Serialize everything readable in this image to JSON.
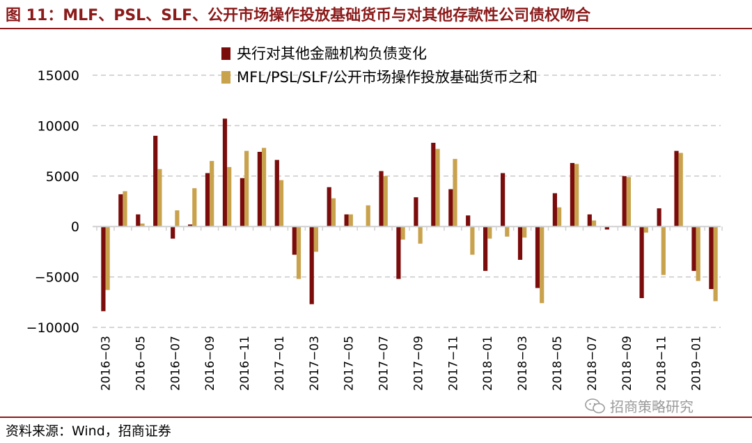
{
  "figure": {
    "title": "图 11：MLF、PSL、SLF、公开市场操作投放基础货币与对其他存款性公司债权吻合",
    "source": "资料来源：Wind，招商证券",
    "watermark": "招商策略研究"
  },
  "colors": {
    "series1": "#7B0C0C",
    "series2": "#C9A24D",
    "title": "#8B1A1A"
  },
  "chart_data": {
    "type": "bar",
    "title": "",
    "xlabel": "",
    "ylabel": "",
    "ylim": [
      -10000,
      15000
    ],
    "yticks": [
      15000,
      10000,
      5000,
      0,
      -5000,
      -10000
    ],
    "legend_position": "top",
    "grid": true,
    "categories": [
      "2016-03",
      "2016-04",
      "2016-05",
      "2016-06",
      "2016-07",
      "2016-08",
      "2016-09",
      "2016-10",
      "2016-11",
      "2016-12",
      "2017-01",
      "2017-02",
      "2017-03",
      "2017-04",
      "2017-05",
      "2017-06",
      "2017-07",
      "2017-08",
      "2017-09",
      "2017-10",
      "2017-11",
      "2017-12",
      "2018-01",
      "2018-02",
      "2018-03",
      "2018-04",
      "2018-05",
      "2018-06",
      "2018-07",
      "2018-08",
      "2018-09",
      "2018-10",
      "2018-11",
      "2018-12",
      "2019-01",
      "2019-02"
    ],
    "tick_labels": [
      "2016-03",
      "2016-05",
      "2016-07",
      "2016-09",
      "2016-11",
      "2017-01",
      "2017-03",
      "2017-05",
      "2017-07",
      "2017-09",
      "2017-11",
      "2018-01",
      "2018-03",
      "2018-05",
      "2018-07",
      "2018-09",
      "2018-11",
      "2019-01"
    ],
    "series": [
      {
        "name": "央行对其他金融机构负债变化",
        "values": [
          -8400,
          3200,
          1200,
          9000,
          -1200,
          200,
          5300,
          10700,
          4800,
          7400,
          6600,
          -2800,
          -7700,
          3900,
          1200,
          0,
          5500,
          -5200,
          2900,
          8300,
          3700,
          1100,
          -4400,
          5300,
          -3300,
          -6100,
          3300,
          6300,
          1200,
          -300,
          5000,
          -7100,
          1800,
          7500,
          -4400,
          -6200
        ]
      },
      {
        "name": "MFL/PSL/SLF/公开市场操作投放基础货币之和",
        "values": [
          -6300,
          3500,
          300,
          5700,
          1600,
          3800,
          6500,
          5900,
          7500,
          7800,
          4600,
          -5200,
          -2500,
          2800,
          1200,
          2100,
          5000,
          -1300,
          -1700,
          7700,
          6700,
          -2800,
          -1200,
          -1000,
          -1100,
          -7600,
          1900,
          6200,
          600,
          0,
          4900,
          -600,
          -4800,
          7300,
          -5400,
          -7400
        ]
      }
    ]
  }
}
